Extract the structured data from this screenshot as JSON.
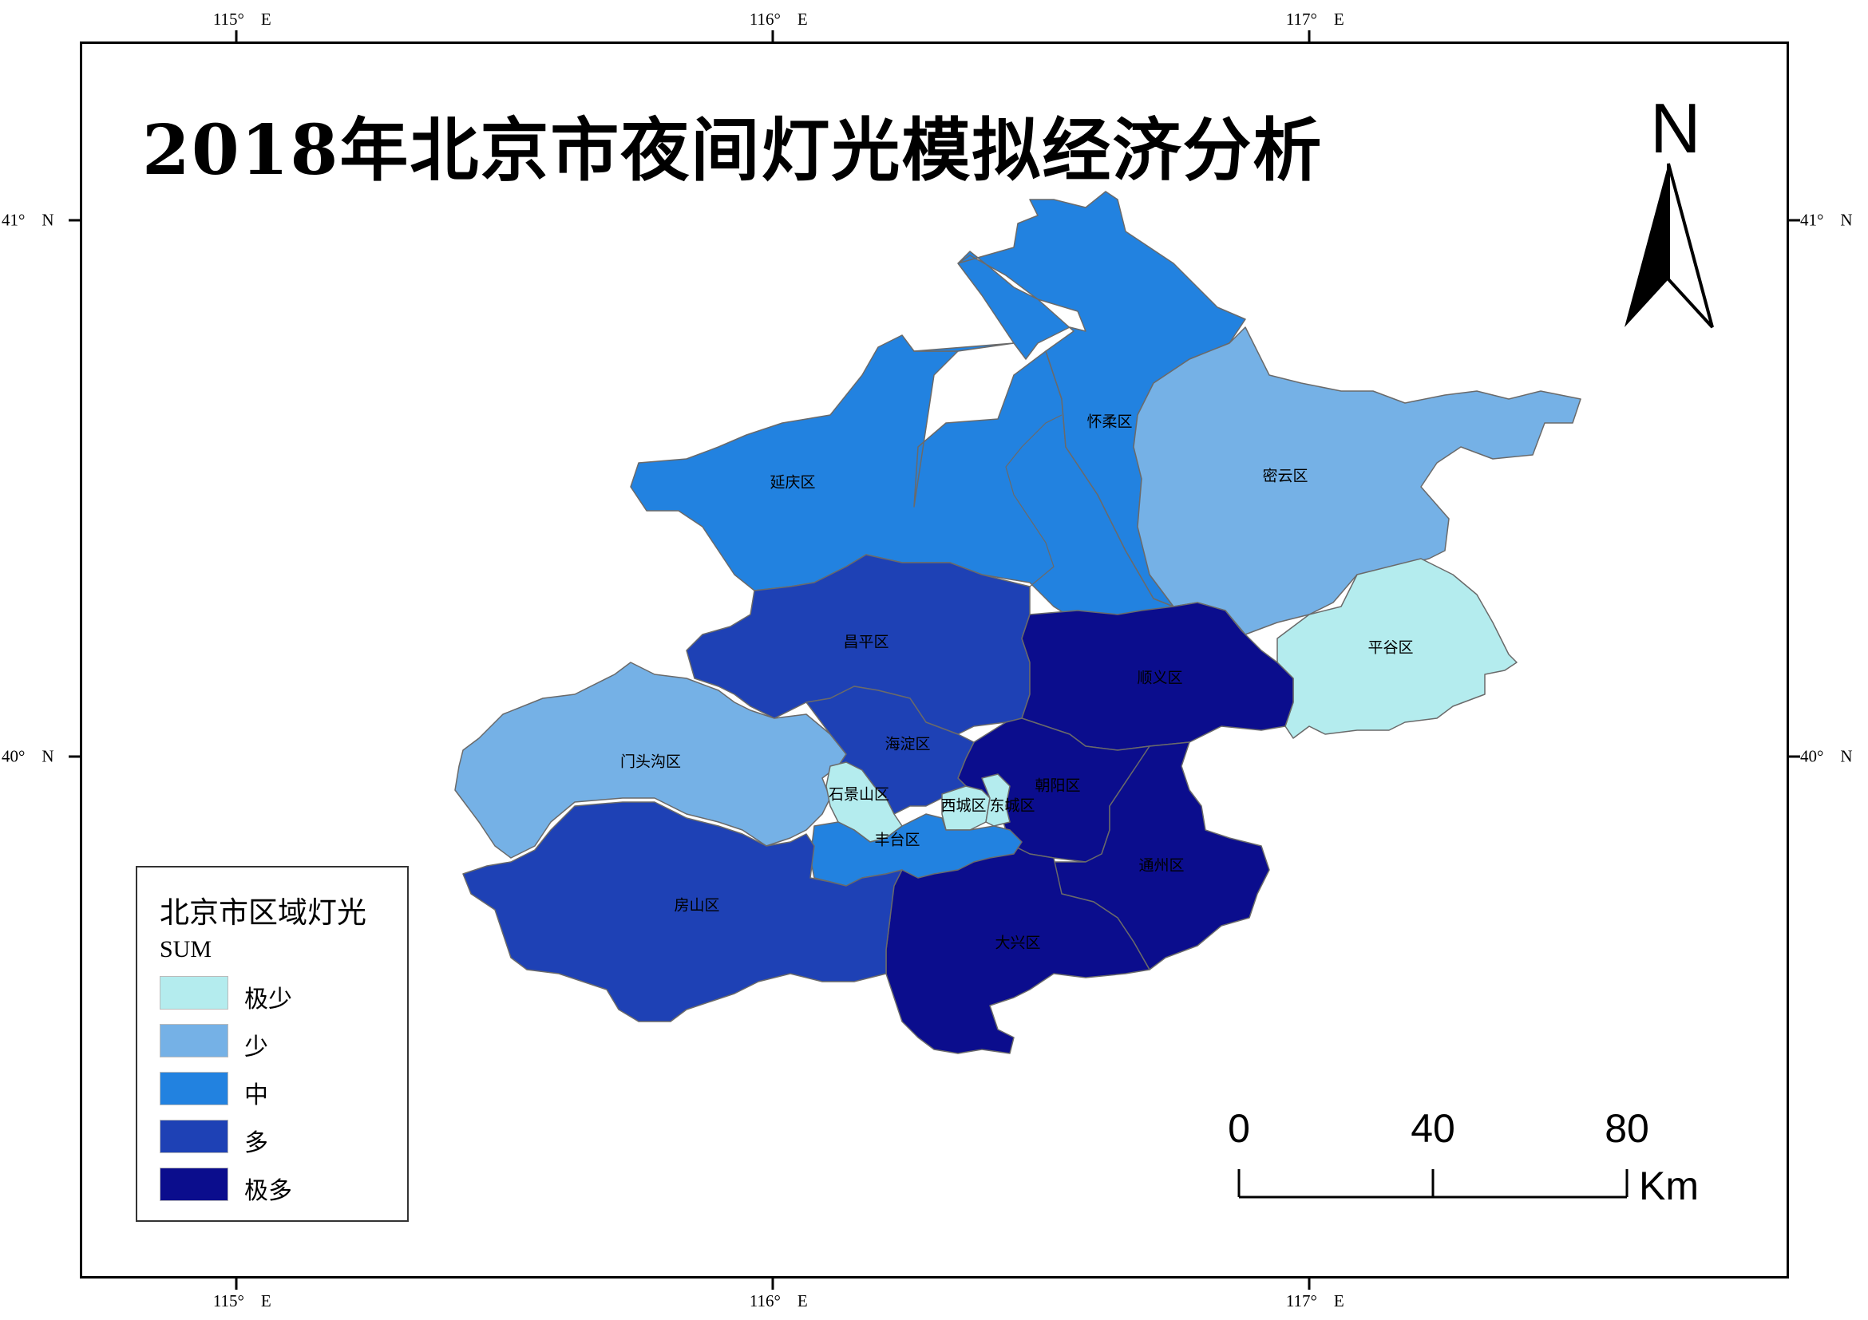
{
  "title": "2018年北京市夜间灯光模拟经济分析",
  "graticule": {
    "longitudes": [
      "115°　E",
      "116°　E",
      "117°　E"
    ],
    "latitudes": [
      "41°　N",
      "40°　N"
    ]
  },
  "north_arrow": {
    "label": "N"
  },
  "scale_bar": {
    "ticks": [
      "0",
      "40",
      "80"
    ],
    "unit": "Km"
  },
  "legend": {
    "title": "北京市区域灯光",
    "field": "SUM",
    "classes": [
      {
        "label": "极少",
        "color": "#b4ecee"
      },
      {
        "label": "少",
        "color": "#75b1e6"
      },
      {
        "label": "中",
        "color": "#2282e0"
      },
      {
        "label": "多",
        "color": "#1e41b5"
      },
      {
        "label": "极多",
        "color": "#0b0d8d"
      }
    ]
  },
  "districts": [
    {
      "name": "延庆区",
      "class": "中"
    },
    {
      "name": "怀柔区",
      "class": "中"
    },
    {
      "name": "密云区",
      "class": "少"
    },
    {
      "name": "平谷区",
      "class": "极少"
    },
    {
      "name": "昌平区",
      "class": "多"
    },
    {
      "name": "顺义区",
      "class": "极多"
    },
    {
      "name": "门头沟区",
      "class": "少"
    },
    {
      "name": "海淀区",
      "class": "多"
    },
    {
      "name": "石景山区",
      "class": "极少"
    },
    {
      "name": "朝阳区",
      "class": "极多"
    },
    {
      "name": "西城区",
      "class": "极少"
    },
    {
      "name": "东城区",
      "class": "极少"
    },
    {
      "name": "丰台区",
      "class": "中"
    },
    {
      "name": "通州区",
      "class": "极多"
    },
    {
      "name": "房山区",
      "class": "多"
    },
    {
      "name": "大兴区",
      "class": "极多"
    }
  ]
}
